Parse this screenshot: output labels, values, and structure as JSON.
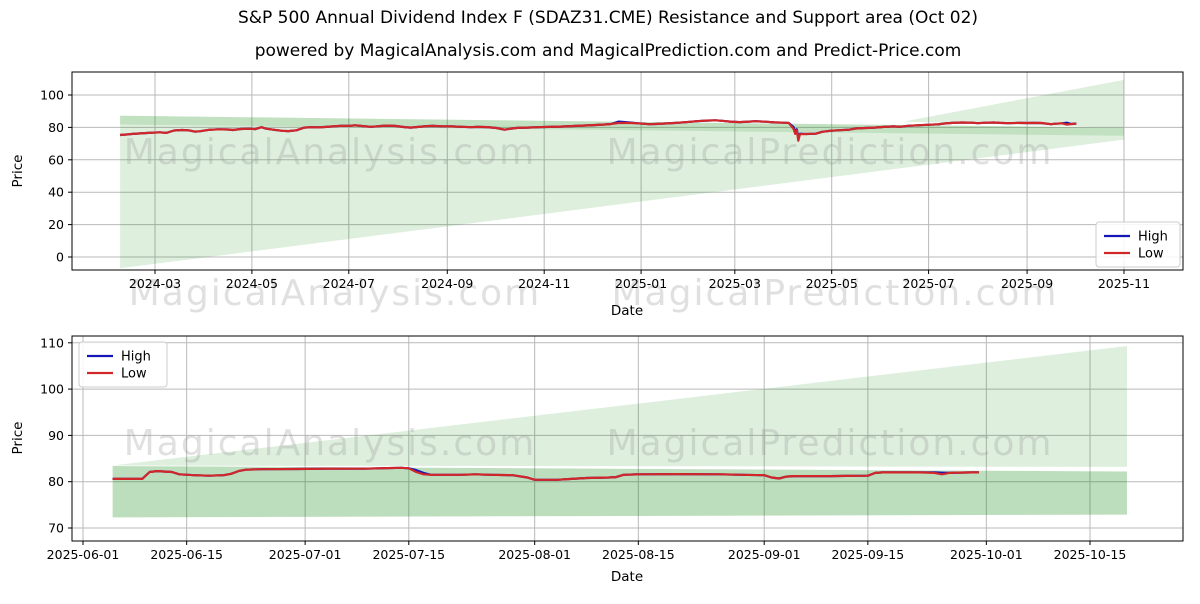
{
  "title": {
    "line1": "S&P 500 Annual Dividend Index F (SDAZ31.CME) Resistance and Support area (Oct 02)",
    "line2": "powered by MagicalAnalysis.com and MagicalPrediction.com and Predict-Price.com"
  },
  "colors": {
    "high": "#1515b8",
    "low": "#d22728",
    "band_green": "#008000",
    "grid": "#b9b9b9",
    "spine": "#000000",
    "watermark": "#999999"
  },
  "watermark_texts": [
    "MagicalAnalysis.com",
    "MagicalPrediction.com"
  ],
  "chart_data": [
    {
      "type": "line",
      "name": "full-history-chart",
      "xlabel": "Date",
      "ylabel": "Price",
      "ylim": [
        -8,
        114
      ],
      "y_ticks": [
        0,
        20,
        40,
        60,
        80,
        100
      ],
      "x_ticks": [
        {
          "label": "2024-03",
          "date": "2024-03-01"
        },
        {
          "label": "2024-05",
          "date": "2024-05-01"
        },
        {
          "label": "2024-07",
          "date": "2024-07-01"
        },
        {
          "label": "2024-09",
          "date": "2024-09-01"
        },
        {
          "label": "2024-11",
          "date": "2024-11-01"
        },
        {
          "label": "2025-01",
          "date": "2025-01-01"
        },
        {
          "label": "2025-03",
          "date": "2025-03-01"
        },
        {
          "label": "2025-05",
          "date": "2025-05-01"
        },
        {
          "label": "2025-07",
          "date": "2025-07-01"
        },
        {
          "label": "2025-09",
          "date": "2025-09-01"
        },
        {
          "label": "2025-11",
          "date": "2025-11-01"
        }
      ],
      "legend": {
        "position": "lower right",
        "entries": [
          {
            "label": "High",
            "color_key": "high"
          },
          {
            "label": "Low",
            "color_key": "low"
          }
        ]
      },
      "bands": [
        {
          "name": "support-area",
          "opacity": 0.13,
          "points": [
            [
              "2024-02-08",
              -7
            ],
            [
              "2025-11-01",
              72.5
            ],
            [
              "2025-11-01",
              79.8
            ],
            [
              "2024-02-08",
              87.2
            ]
          ]
        },
        {
          "name": "resistance-band",
          "opacity": 0.13,
          "points": [
            [
              "2024-02-08",
              81.8
            ],
            [
              "2025-11-01",
              74.8
            ],
            [
              "2025-11-01",
              79.8
            ],
            [
              "2024-02-08",
              87.2
            ]
          ]
        },
        {
          "name": "resistance-wedge",
          "opacity": 0.13,
          "points": [
            [
              "2025-06-15",
              83.6
            ],
            [
              "2025-11-01",
              79.8
            ],
            [
              "2025-11-01",
              109.3
            ]
          ]
        }
      ],
      "series": {
        "low": [
          [
            "2024-02-08",
            75.3
          ],
          [
            "2024-02-12",
            75.6
          ],
          [
            "2024-02-16",
            76.0
          ],
          [
            "2024-02-21",
            76.3
          ],
          [
            "2024-02-26",
            76.6
          ],
          [
            "2024-03-04",
            77.0
          ],
          [
            "2024-03-08",
            76.6
          ],
          [
            "2024-03-13",
            78.1
          ],
          [
            "2024-03-18",
            78.4
          ],
          [
            "2024-03-22",
            78.2
          ],
          [
            "2024-03-26",
            77.4
          ],
          [
            "2024-03-29",
            77.6
          ],
          [
            "2024-04-04",
            78.5
          ],
          [
            "2024-04-10",
            78.8
          ],
          [
            "2024-04-16",
            78.7
          ],
          [
            "2024-04-19",
            78.4
          ],
          [
            "2024-04-24",
            79.0
          ],
          [
            "2024-04-30",
            79.2
          ],
          [
            "2024-05-03",
            78.9
          ],
          [
            "2024-05-07",
            80.1
          ],
          [
            "2024-05-10",
            79.2
          ],
          [
            "2024-05-15",
            78.5
          ],
          [
            "2024-05-20",
            77.9
          ],
          [
            "2024-05-24",
            77.7
          ],
          [
            "2024-05-29",
            78.2
          ],
          [
            "2024-06-03",
            79.9
          ],
          [
            "2024-06-07",
            80.1
          ],
          [
            "2024-06-12",
            80.0
          ],
          [
            "2024-06-17",
            80.3
          ],
          [
            "2024-06-21",
            80.6
          ],
          [
            "2024-06-26",
            81.0
          ],
          [
            "2024-07-01",
            80.9
          ],
          [
            "2024-07-05",
            81.3
          ],
          [
            "2024-07-10",
            80.8
          ],
          [
            "2024-07-15",
            80.4
          ],
          [
            "2024-07-19",
            80.7
          ],
          [
            "2024-07-24",
            81.1
          ],
          [
            "2024-07-30",
            80.9
          ],
          [
            "2024-08-05",
            80.2
          ],
          [
            "2024-08-09",
            79.9
          ],
          [
            "2024-08-14",
            80.3
          ],
          [
            "2024-08-19",
            80.8
          ],
          [
            "2024-08-23",
            80.9
          ],
          [
            "2024-08-29",
            80.7
          ],
          [
            "2024-09-04",
            80.6
          ],
          [
            "2024-09-10",
            80.4
          ],
          [
            "2024-09-16",
            80.1
          ],
          [
            "2024-09-20",
            80.3
          ],
          [
            "2024-09-26",
            80.2
          ],
          [
            "2024-10-02",
            79.6
          ],
          [
            "2024-10-07",
            78.6
          ],
          [
            "2024-10-10",
            79.1
          ],
          [
            "2024-10-15",
            79.7
          ],
          [
            "2024-10-21",
            79.9
          ],
          [
            "2024-10-28",
            80.1
          ],
          [
            "2024-11-04",
            80.3
          ],
          [
            "2024-11-11",
            80.5
          ],
          [
            "2024-11-18",
            80.8
          ],
          [
            "2024-11-25",
            81.1
          ],
          [
            "2024-12-02",
            81.4
          ],
          [
            "2024-12-09",
            81.8
          ],
          [
            "2024-12-13",
            82.1
          ],
          [
            "2024-12-18",
            82.7
          ],
          [
            "2024-12-24",
            82.8
          ],
          [
            "2024-12-30",
            82.5
          ],
          [
            "2025-01-06",
            82.0
          ],
          [
            "2025-01-10",
            82.1
          ],
          [
            "2025-01-16",
            82.4
          ],
          [
            "2025-01-23",
            82.8
          ],
          [
            "2025-01-29",
            83.2
          ],
          [
            "2025-02-05",
            83.8
          ],
          [
            "2025-02-11",
            84.2
          ],
          [
            "2025-02-17",
            84.4
          ],
          [
            "2025-02-21",
            84.1
          ],
          [
            "2025-02-26",
            83.6
          ],
          [
            "2025-03-04",
            83.3
          ],
          [
            "2025-03-10",
            83.6
          ],
          [
            "2025-03-14",
            83.8
          ],
          [
            "2025-03-20",
            83.5
          ],
          [
            "2025-03-26",
            83.1
          ],
          [
            "2025-04-01",
            82.9
          ],
          [
            "2025-04-04",
            82.7
          ],
          [
            "2025-04-07",
            79.0
          ],
          [
            "2025-04-08",
            76.0
          ],
          [
            "2025-04-09",
            78.2
          ],
          [
            "2025-04-10",
            71.8
          ],
          [
            "2025-04-11",
            75.8
          ],
          [
            "2025-04-15",
            75.9
          ],
          [
            "2025-04-21",
            76.1
          ],
          [
            "2025-04-25",
            77.3
          ],
          [
            "2025-04-30",
            77.9
          ],
          [
            "2025-05-06",
            78.3
          ],
          [
            "2025-05-12",
            78.6
          ],
          [
            "2025-05-16",
            79.3
          ],
          [
            "2025-05-22",
            79.6
          ],
          [
            "2025-05-28",
            79.9
          ],
          [
            "2025-06-03",
            80.3
          ],
          [
            "2025-06-09",
            80.6
          ],
          [
            "2025-06-13",
            80.4
          ],
          [
            "2025-06-18",
            81.0
          ],
          [
            "2025-06-24",
            81.3
          ],
          [
            "2025-06-30",
            81.6
          ],
          [
            "2025-07-07",
            81.9
          ],
          [
            "2025-07-11",
            82.4
          ],
          [
            "2025-07-16",
            82.8
          ],
          [
            "2025-07-22",
            83.0
          ],
          [
            "2025-07-28",
            82.9
          ],
          [
            "2025-08-01",
            82.6
          ],
          [
            "2025-08-06",
            82.9
          ],
          [
            "2025-08-11",
            83.0
          ],
          [
            "2025-08-15",
            82.8
          ],
          [
            "2025-08-20",
            82.6
          ],
          [
            "2025-08-26",
            82.8
          ],
          [
            "2025-09-01",
            82.7
          ],
          [
            "2025-09-05",
            82.8
          ],
          [
            "2025-09-10",
            82.7
          ],
          [
            "2025-09-16",
            82.0
          ],
          [
            "2025-09-19",
            82.3
          ],
          [
            "2025-09-23",
            82.5
          ],
          [
            "2025-09-26",
            81.8
          ],
          [
            "2025-09-29",
            82.1
          ],
          [
            "2025-10-02",
            82.4
          ]
        ],
        "high_equals_low_except": [
          [
            "2024-12-18",
            83.6
          ],
          [
            "2024-12-24",
            83.1
          ],
          [
            "2025-04-07",
            80.2
          ],
          [
            "2025-04-08",
            77.4
          ],
          [
            "2025-04-09",
            78.8
          ],
          [
            "2025-04-10",
            73.8
          ],
          [
            "2025-04-11",
            76.1
          ],
          [
            "2025-09-26",
            82.9
          ]
        ]
      }
    },
    {
      "type": "line",
      "name": "recent-zoom-chart",
      "xlabel": "Date",
      "ylabel": "Price",
      "ylim": [
        67,
        111.5
      ],
      "y_ticks": [
        70,
        80,
        90,
        100,
        110
      ],
      "x_ticks": [
        {
          "label": "2025-06-01",
          "date": "2025-06-01"
        },
        {
          "label": "2025-06-15",
          "date": "2025-06-15"
        },
        {
          "label": "2025-07-01",
          "date": "2025-07-01"
        },
        {
          "label": "2025-07-15",
          "date": "2025-07-15"
        },
        {
          "label": "2025-08-01",
          "date": "2025-08-01"
        },
        {
          "label": "2025-08-15",
          "date": "2025-08-15"
        },
        {
          "label": "2025-09-01",
          "date": "2025-09-01"
        },
        {
          "label": "2025-09-15",
          "date": "2025-09-15"
        },
        {
          "label": "2025-10-01",
          "date": "2025-10-01"
        },
        {
          "label": "2025-10-15",
          "date": "2025-10-15"
        }
      ],
      "legend": {
        "position": "upper left",
        "entries": [
          {
            "label": "High",
            "color_key": "high"
          },
          {
            "label": "Low",
            "color_key": "low"
          }
        ]
      },
      "bands": [
        {
          "name": "support-band",
          "opacity": 0.26,
          "points": [
            [
              "2025-06-05",
              72.3
            ],
            [
              "2025-10-20",
              72.9
            ],
            [
              "2025-10-20",
              82.2
            ],
            [
              "2025-06-05",
              83.4
            ]
          ]
        },
        {
          "name": "resistance-wedge",
          "opacity": 0.13,
          "points": [
            [
              "2025-06-05",
              83.5
            ],
            [
              "2025-10-20",
              83.2
            ],
            [
              "2025-10-20",
              109.3
            ]
          ]
        }
      ],
      "series": {
        "low": [
          [
            "2025-06-05",
            80.6
          ],
          [
            "2025-06-09",
            80.6
          ],
          [
            "2025-06-10",
            82.1
          ],
          [
            "2025-06-11",
            82.3
          ],
          [
            "2025-06-13",
            82.1
          ],
          [
            "2025-06-14",
            81.6
          ],
          [
            "2025-06-16",
            81.4
          ],
          [
            "2025-06-18",
            81.3
          ],
          [
            "2025-06-20",
            81.4
          ],
          [
            "2025-06-21",
            81.7
          ],
          [
            "2025-06-22",
            82.3
          ],
          [
            "2025-06-23",
            82.6
          ],
          [
            "2025-06-25",
            82.7
          ],
          [
            "2025-06-30",
            82.75
          ],
          [
            "2025-07-04",
            82.8
          ],
          [
            "2025-07-09",
            82.8
          ],
          [
            "2025-07-11",
            82.9
          ],
          [
            "2025-07-14",
            83.0
          ],
          [
            "2025-07-15",
            82.9
          ],
          [
            "2025-07-16",
            82.1
          ],
          [
            "2025-07-17",
            81.6
          ],
          [
            "2025-07-18",
            81.5
          ],
          [
            "2025-07-22",
            81.5
          ],
          [
            "2025-07-24",
            81.6
          ],
          [
            "2025-07-26",
            81.5
          ],
          [
            "2025-07-29",
            81.4
          ],
          [
            "2025-07-31",
            80.9
          ],
          [
            "2025-08-01",
            80.4
          ],
          [
            "2025-08-04",
            80.4
          ],
          [
            "2025-08-06",
            80.6
          ],
          [
            "2025-08-08",
            80.8
          ],
          [
            "2025-08-11",
            80.9
          ],
          [
            "2025-08-12",
            81.0
          ],
          [
            "2025-08-13",
            81.5
          ],
          [
            "2025-08-15",
            81.6
          ],
          [
            "2025-08-20",
            81.65
          ],
          [
            "2025-08-26",
            81.6
          ],
          [
            "2025-08-29",
            81.5
          ],
          [
            "2025-09-01",
            81.4
          ],
          [
            "2025-09-02",
            80.9
          ],
          [
            "2025-09-03",
            80.7
          ],
          [
            "2025-09-04",
            81.1
          ],
          [
            "2025-09-05",
            81.2
          ],
          [
            "2025-09-10",
            81.2
          ],
          [
            "2025-09-12",
            81.25
          ],
          [
            "2025-09-15",
            81.3
          ],
          [
            "2025-09-16",
            81.9
          ],
          [
            "2025-09-17",
            82.0
          ],
          [
            "2025-09-22",
            82.0
          ],
          [
            "2025-09-24",
            81.9
          ],
          [
            "2025-09-25",
            81.6
          ],
          [
            "2025-09-26",
            81.9
          ],
          [
            "2025-09-29",
            82.0
          ],
          [
            "2025-09-30",
            82.0
          ]
        ],
        "high_equals_low_except": [
          [
            "2025-07-16",
            82.5
          ],
          [
            "2025-07-17",
            81.9
          ],
          [
            "2025-09-24",
            82.0
          ],
          [
            "2025-09-25",
            81.95
          ]
        ]
      }
    }
  ]
}
